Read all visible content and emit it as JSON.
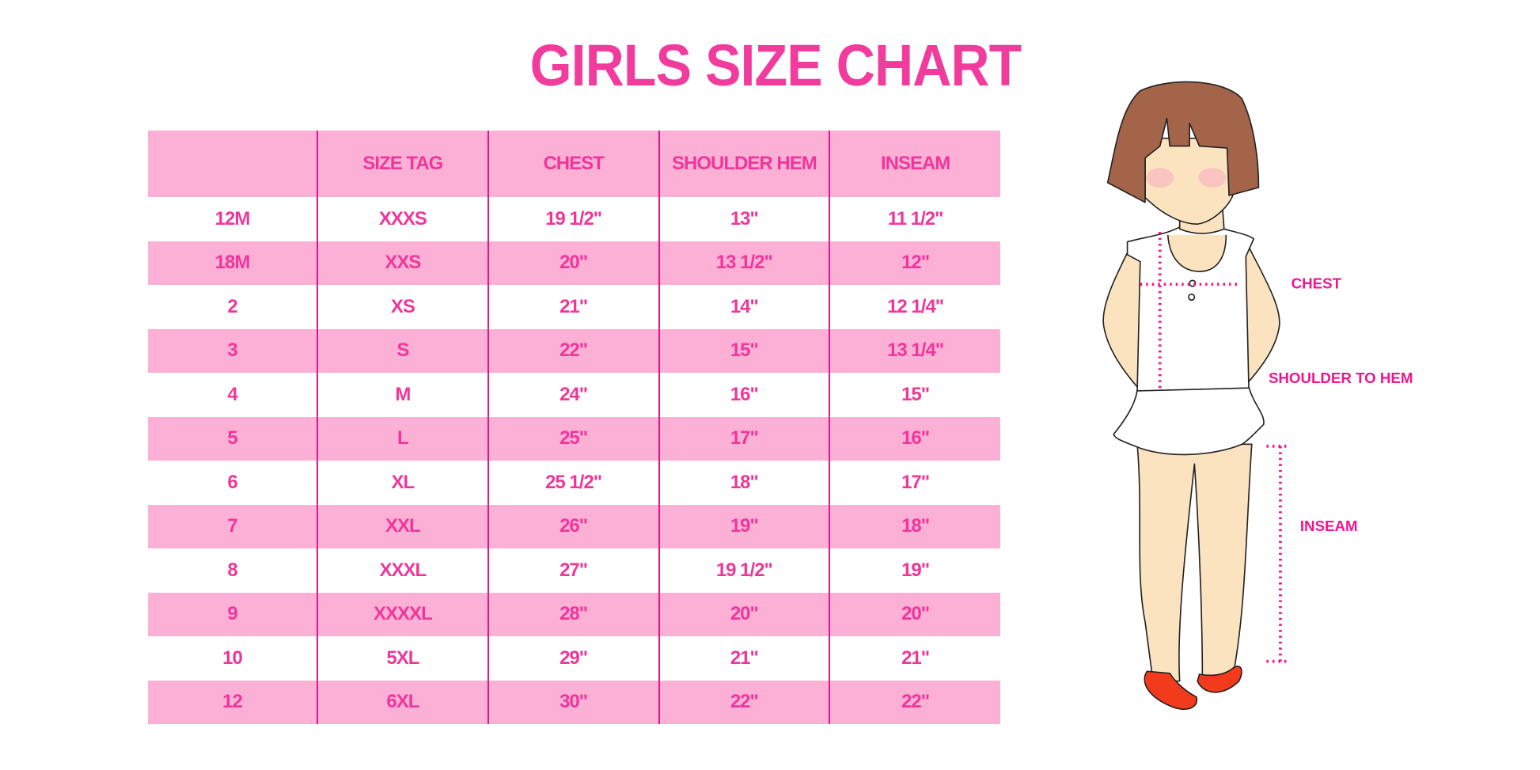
{
  "title": "GIRLS SIZE CHART",
  "table": {
    "headers": [
      "",
      "SIZE TAG",
      "CHEST",
      "SHOULDER HEM",
      "INSEAM"
    ],
    "rows": [
      [
        "12M",
        "XXXS",
        "19 1/2\"",
        "13\"",
        "11 1/2\""
      ],
      [
        "18M",
        "XXS",
        "20\"",
        "13 1/2\"",
        "12\""
      ],
      [
        "2",
        "XS",
        "21\"",
        "14\"",
        "12 1/4\""
      ],
      [
        "3",
        "S",
        "22\"",
        "15\"",
        "13 1/4\""
      ],
      [
        "4",
        "M",
        "24\"",
        "16\"",
        "15\""
      ],
      [
        "5",
        "L",
        "25\"",
        "17\"",
        "16\""
      ],
      [
        "6",
        "XL",
        "25 1/2\"",
        "18\"",
        "17\""
      ],
      [
        "7",
        "XXL",
        "26\"",
        "19\"",
        "18\""
      ],
      [
        "8",
        "XXXL",
        "27\"",
        "19 1/2\"",
        "19\""
      ],
      [
        "9",
        "XXXXL",
        "28\"",
        "20\"",
        "20\""
      ],
      [
        "10",
        "5XL",
        "29\"",
        "21\"",
        "21\""
      ],
      [
        "12",
        "6XL",
        "30\"",
        "22\"",
        "22\""
      ]
    ]
  },
  "figure": {
    "labels": {
      "chest": "CHEST",
      "shoulder_to_hem": "SHOULDER TO HEM",
      "inseam": "INSEAM"
    }
  },
  "colors": {
    "accent": "#f23c9d",
    "stripe": "#fcb0d6",
    "divider": "#e3178a"
  }
}
